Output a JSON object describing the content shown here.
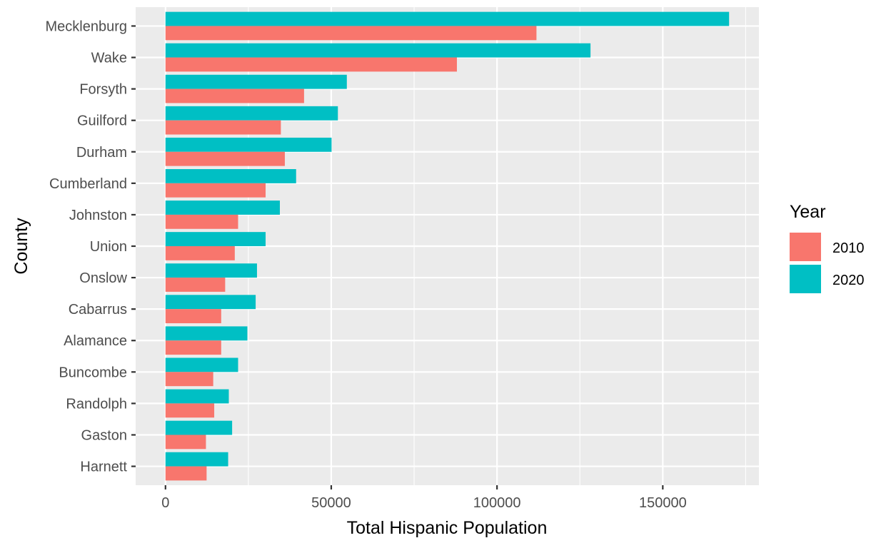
{
  "chart_data": {
    "type": "bar",
    "orientation": "horizontal",
    "title": "",
    "xlabel": "Total Hispanic Population",
    "ylabel": "County",
    "xlim": [
      -9000,
      179000
    ],
    "xticks": [
      0,
      50000,
      100000,
      150000
    ],
    "x_tick_labels": [
      "0",
      "50000",
      "100000",
      "150000"
    ],
    "grid": true,
    "legend_position": "right",
    "legend_title": "Year",
    "categories": [
      "Mecklenburg",
      "Wake",
      "Forsyth",
      "Guilford",
      "Durham",
      "Cumberland",
      "Johnston",
      "Union",
      "Onslow",
      "Cabarrus",
      "Alamance",
      "Buncombe",
      "Randolph",
      "Gaston",
      "Harnett"
    ],
    "series": [
      {
        "name": "2010",
        "color": "#F8766D",
        "values": [
          111900,
          87900,
          41800,
          34800,
          36000,
          30200,
          21900,
          20900,
          18000,
          16800,
          16800,
          14400,
          14700,
          12200,
          12400
        ]
      },
      {
        "name": "2020",
        "color": "#00BFC4",
        "values": [
          170000,
          128200,
          54700,
          52000,
          50100,
          39400,
          34500,
          30200,
          27600,
          27200,
          24700,
          21900,
          19100,
          20100,
          18900
        ]
      }
    ]
  }
}
